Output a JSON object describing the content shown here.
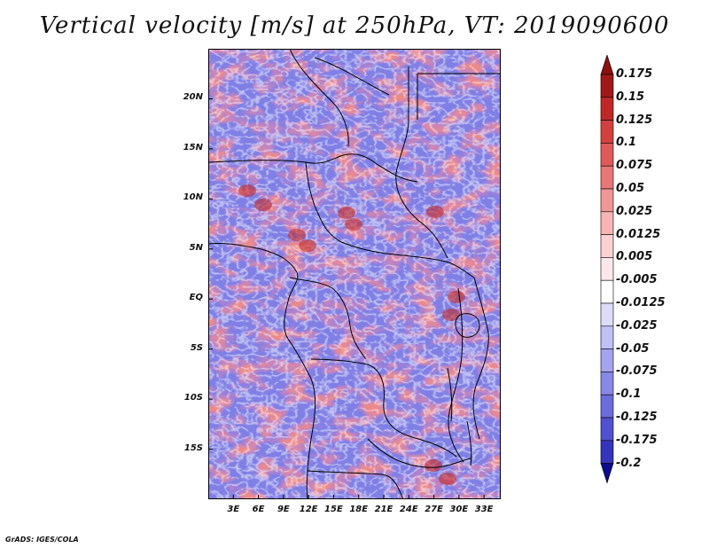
{
  "title": "Vertical velocity [m/s] at 250hPa, VT: 2019090600",
  "credit": "GrADS: IGES/COLA",
  "map": {
    "lat_range": [
      -20,
      25
    ],
    "lon_range": [
      0,
      35
    ],
    "lat_ticks": [
      {
        "value": 20,
        "label": "20N"
      },
      {
        "value": 15,
        "label": "15N"
      },
      {
        "value": 10,
        "label": "10N"
      },
      {
        "value": 5,
        "label": "5N"
      },
      {
        "value": 0,
        "label": "EQ"
      },
      {
        "value": -5,
        "label": "5S"
      },
      {
        "value": -10,
        "label": "10S"
      },
      {
        "value": -15,
        "label": "15S"
      }
    ],
    "lon_ticks": [
      {
        "value": 3,
        "label": "3E"
      },
      {
        "value": 6,
        "label": "6E"
      },
      {
        "value": 9,
        "label": "9E"
      },
      {
        "value": 12,
        "label": "12E"
      },
      {
        "value": 15,
        "label": "15E"
      },
      {
        "value": 18,
        "label": "18E"
      },
      {
        "value": 21,
        "label": "21E"
      },
      {
        "value": 24,
        "label": "24E"
      },
      {
        "value": 27,
        "label": "27E"
      },
      {
        "value": 30,
        "label": "30E"
      },
      {
        "value": 33,
        "label": "33E"
      }
    ]
  },
  "colorbar": {
    "levels": [
      {
        "label": "0.175",
        "color": "#a01818"
      },
      {
        "label": "0.15",
        "color": "#c02828"
      },
      {
        "label": "0.125",
        "color": "#d44040"
      },
      {
        "label": "0.1",
        "color": "#e05a5a"
      },
      {
        "label": "0.075",
        "color": "#e87878"
      },
      {
        "label": "0.05",
        "color": "#f09696"
      },
      {
        "label": "0.025",
        "color": "#f6b4b4"
      },
      {
        "label": "0.0125",
        "color": "#fad0d0"
      },
      {
        "label": "0.005",
        "color": "#fde8e8"
      },
      {
        "label": "-0.005",
        "color": "#ffffff"
      },
      {
        "label": "-0.0125",
        "color": "#dcdcf8"
      },
      {
        "label": "-0.025",
        "color": "#c0c0f4"
      },
      {
        "label": "-0.05",
        "color": "#a4a4ee"
      },
      {
        "label": "-0.075",
        "color": "#8888e6"
      },
      {
        "label": "-0.1",
        "color": "#6c6cdc"
      },
      {
        "label": "-0.125",
        "color": "#5050d0"
      },
      {
        "label": "-0.175",
        "color": "#3434bc"
      },
      {
        "label": "-0.2",
        "color": "#1c1ca4"
      }
    ],
    "top_color": "#8c1010",
    "bottom_color": "#0c0c8c"
  }
}
